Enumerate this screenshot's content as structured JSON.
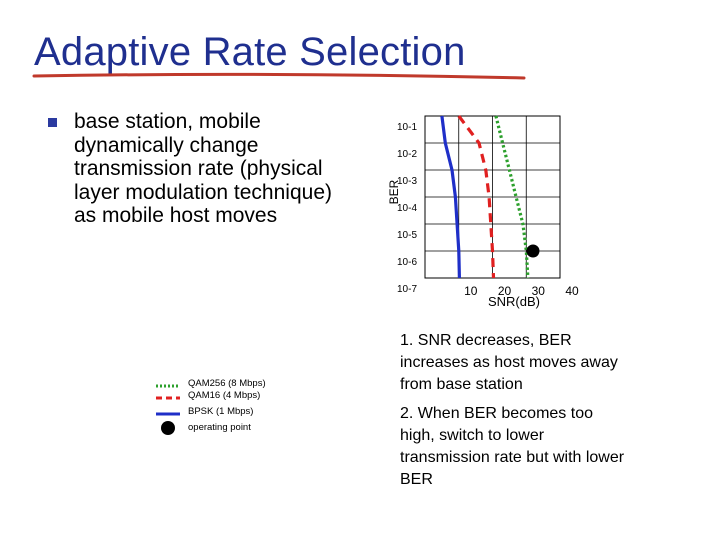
{
  "slide": {
    "title": "Adaptive Rate Selection",
    "bullet": "base station, mobile dynamically change transmission rate (physical layer modulation technique) as mobile host moves",
    "notes": [
      "1. SNR decreases, BER increases as host moves away from base station",
      "2. When BER becomes too high, switch to lower transmission rate but with lower BER"
    ],
    "accent_color": "#1f2f8f",
    "underline_color": "#c0392b"
  },
  "legend": [
    {
      "label": "QAM256 (8 Mbps)",
      "color": "#2ca02c",
      "style": "dotted",
      "icon": "line-swatch"
    },
    {
      "label": "QAM16 (4 Mbps)",
      "color": "#e02020",
      "style": "dashed",
      "icon": "line-swatch"
    },
    {
      "label": "BPSK (1 Mbps)",
      "color": "#1f2fc8",
      "style": "solid",
      "icon": "line-swatch"
    },
    {
      "label": "operating point",
      "color": "#000000",
      "style": "dot",
      "icon": "circle-marker"
    }
  ],
  "chart_data": {
    "type": "line",
    "xlabel": "SNR(dB)",
    "ylabel": "BER",
    "x_ticks": [
      "10",
      "20",
      "30",
      "40"
    ],
    "y_ticks": [
      "10-1",
      "10-2",
      "10-3",
      "10-4",
      "10-5",
      "10-6",
      "10-7"
    ],
    "y_scale": "log",
    "xlim": [
      0,
      40
    ],
    "ylim": [
      1e-07,
      0.1
    ],
    "grid": true,
    "series": [
      {
        "name": "BPSK (1 Mbps)",
        "color": "#1f2fc8",
        "dash": "solid",
        "points": [
          [
            5,
            0.1
          ],
          [
            6,
            0.01
          ],
          [
            8,
            0.001
          ],
          [
            9,
            0.0001
          ],
          [
            9.5,
            1e-05
          ],
          [
            10,
            1e-06
          ],
          [
            10.2,
            1e-07
          ]
        ]
      },
      {
        "name": "QAM16 (4 Mbps)",
        "color": "#e02020",
        "dash": "dashed",
        "points": [
          [
            10,
            0.1
          ],
          [
            16,
            0.01
          ],
          [
            18,
            0.001
          ],
          [
            19,
            0.0001
          ],
          [
            19.5,
            1e-05
          ],
          [
            20,
            1e-06
          ],
          [
            20.3,
            1e-07
          ]
        ]
      },
      {
        "name": "QAM256 (8 Mbps)",
        "color": "#2ca02c",
        "dash": "dotted",
        "points": [
          [
            21,
            0.1
          ],
          [
            23,
            0.01
          ],
          [
            25,
            0.001
          ],
          [
            27,
            0.0001
          ],
          [
            29,
            1e-05
          ],
          [
            30,
            1e-06
          ],
          [
            30.5,
            1e-07
          ]
        ]
      }
    ],
    "operating_point": {
      "x": 32,
      "y": 1e-06
    }
  }
}
